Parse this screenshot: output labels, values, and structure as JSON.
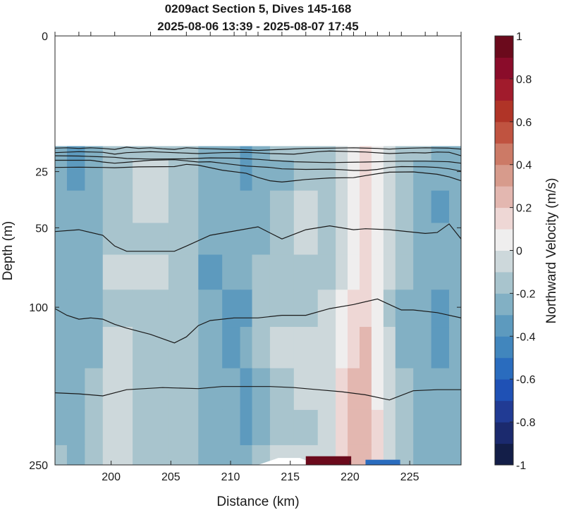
{
  "chart_data": {
    "type": "heatmap",
    "title": "0209act Section 5, Dives 145-168",
    "subtitle": "2025-08-06 13:39 - 2025-08-07 17:45",
    "xlabel": "Distance (km)",
    "ylabel": "Depth (m)",
    "xlim": [
      195.3,
      229.3
    ],
    "ylim": [
      250,
      0
    ],
    "y_scale": "sqrt",
    "x_ticks": [
      200,
      205,
      210,
      215,
      220,
      225
    ],
    "y_ticks": [
      0,
      25,
      50,
      100,
      250
    ],
    "colorbar": {
      "label": "Northward Velocity (m/s)",
      "range": [
        -1,
        1
      ],
      "ticks": [
        -1,
        -0.8,
        -0.6,
        -0.4,
        -0.2,
        0,
        0.2,
        0.4,
        0.6,
        0.8,
        1
      ],
      "colors": [
        "#131e48",
        "#1b2a6e",
        "#213b94",
        "#1f51b5",
        "#2a6cbe",
        "#4186bd",
        "#5d9abe",
        "#82b0c4",
        "#a8c4cd",
        "#cdd8db",
        "#efeeee",
        "#eed7d5",
        "#e3b7b0",
        "#d79b8c",
        "#cc7a66",
        "#c05340",
        "#b03427",
        "#a11b2c",
        "#8a0c2a",
        "#6b0a1c"
      ]
    },
    "data_top_depth": 16.5,
    "x": [
      195.3,
      197.3,
      198.3,
      200.3,
      203.3,
      206.3,
      208.3,
      210.3,
      211.3,
      212.3,
      214.3,
      216.3,
      218.3,
      219.3,
      220.3,
      221.3,
      222.3,
      223.3,
      224.3,
      226.3,
      227.3,
      229.3
    ],
    "depth": [
      17,
      25,
      40,
      55,
      75,
      100,
      130,
      170,
      210,
      245
    ],
    "velocity": [
      [
        -0.22,
        -0.32,
        -0.28,
        -0.15,
        -0.12,
        -0.15,
        -0.3,
        -0.28,
        -0.35,
        -0.26,
        -0.2,
        -0.15,
        -0.2,
        -0.06,
        0.02,
        0.13,
        0.05,
        -0.1,
        -0.15,
        -0.2,
        -0.3,
        -0.25
      ],
      [
        -0.25,
        -0.33,
        -0.3,
        -0.13,
        -0.1,
        -0.14,
        -0.28,
        -0.25,
        -0.32,
        -0.3,
        -0.22,
        -0.12,
        -0.18,
        -0.05,
        0.03,
        0.14,
        0.06,
        -0.1,
        -0.17,
        -0.22,
        -0.3,
        -0.28
      ],
      [
        -0.28,
        -0.3,
        -0.26,
        -0.12,
        -0.1,
        -0.15,
        -0.28,
        -0.28,
        -0.3,
        -0.25,
        -0.18,
        -0.1,
        -0.15,
        -0.06,
        0.02,
        0.15,
        0.05,
        -0.1,
        -0.18,
        -0.25,
        -0.32,
        -0.3
      ],
      [
        -0.28,
        -0.28,
        -0.25,
        -0.12,
        -0.12,
        -0.18,
        -0.3,
        -0.3,
        -0.28,
        -0.22,
        -0.15,
        -0.1,
        -0.14,
        -0.04,
        0.03,
        0.16,
        0.06,
        -0.08,
        -0.2,
        -0.26,
        -0.3,
        -0.28
      ],
      [
        -0.26,
        -0.3,
        -0.26,
        -0.1,
        -0.1,
        -0.2,
        -0.32,
        -0.3,
        -0.3,
        -0.2,
        -0.12,
        -0.12,
        -0.12,
        -0.02,
        0.06,
        0.15,
        0.05,
        -0.1,
        -0.2,
        -0.28,
        -0.3,
        -0.3
      ],
      [
        -0.25,
        -0.3,
        -0.22,
        -0.12,
        -0.12,
        -0.2,
        -0.3,
        -0.35,
        -0.32,
        -0.18,
        -0.12,
        -0.12,
        -0.1,
        0.02,
        0.12,
        0.18,
        0.06,
        -0.12,
        -0.22,
        -0.3,
        -0.34,
        -0.3
      ],
      [
        -0.24,
        -0.28,
        -0.22,
        -0.1,
        -0.12,
        -0.18,
        -0.28,
        -0.33,
        -0.3,
        -0.2,
        -0.1,
        -0.1,
        -0.08,
        0.06,
        0.16,
        0.2,
        0.08,
        -0.1,
        -0.22,
        -0.28,
        -0.32,
        -0.28
      ],
      [
        -0.22,
        -0.26,
        -0.2,
        -0.1,
        -0.12,
        -0.18,
        -0.28,
        -0.3,
        -0.32,
        -0.22,
        -0.12,
        -0.1,
        -0.08,
        0.1,
        0.22,
        0.2,
        0.08,
        -0.08,
        -0.2,
        -0.26,
        -0.3,
        -0.28
      ],
      [
        -0.22,
        -0.26,
        -0.18,
        -0.1,
        -0.12,
        -0.16,
        -0.26,
        -0.28,
        -0.33,
        -0.22,
        -0.12,
        -0.12,
        -0.1,
        0.12,
        0.24,
        0.22,
        0.1,
        -0.08,
        -0.2,
        -0.26,
        -0.28,
        -0.26
      ],
      [
        -0.2,
        -0.24,
        -0.18,
        -0.1,
        -0.12,
        -0.16,
        -0.24,
        -0.26,
        -0.3,
        -0.2,
        -0.1,
        -0.1,
        -0.08,
        0.14,
        0.26,
        0.24,
        0.1,
        -0.06,
        -0.18,
        -0.24,
        -0.26,
        -0.24
      ]
    ],
    "bottom_features": [
      {
        "type": "no-data",
        "x": [
          212.3,
          214.0,
          215.8,
          217.3
        ],
        "depth": [
          250,
          242,
          242,
          250
        ]
      },
      {
        "type": "strong-positive",
        "value": 0.95,
        "x_range": [
          216.3,
          220.1
        ],
        "depth_range": [
          240,
          250
        ]
      },
      {
        "type": "strong-negative",
        "value": -0.55,
        "x_range": [
          221.3,
          224.2
        ],
        "depth_range": [
          244,
          250
        ]
      }
    ],
    "contours": [
      {
        "x": [
          195.3,
          196.3,
          197.3,
          198.3,
          199.3,
          200.3,
          201.3,
          202.3,
          203.3,
          204.3,
          205.3,
          206.3,
          207.3,
          208.3,
          210.3,
          212.3,
          214.3,
          216.3,
          218.3,
          220.3,
          222.3,
          223.3,
          224.3,
          226.3,
          228.3,
          229.3
        ],
        "depth": [
          17.1,
          17,
          17.2,
          17,
          17.2,
          17.5,
          16.8,
          17.2,
          17,
          17.3,
          17.5,
          17,
          17.2,
          17.3,
          17.5,
          17.8,
          17.5,
          17.2,
          17.1,
          17,
          17.2,
          17.4,
          17.2,
          17,
          17.1,
          17.4
        ]
      },
      {
        "x": [
          195.3,
          197.3,
          199.3,
          200.3,
          201.3,
          203.3,
          205.3,
          207.3,
          209.3,
          211.3,
          213.3,
          215.3,
          217.3,
          218.3,
          220.3,
          221.3,
          223.3,
          225.3,
          226.3,
          227.3,
          228.3,
          229.3
        ],
        "depth": [
          18.5,
          18.2,
          18.4,
          19,
          18.5,
          18.2,
          18.5,
          18.8,
          18.5,
          18.4,
          18.8,
          19,
          18.2,
          18,
          18.2,
          18.3,
          18.8,
          18.5,
          18.6,
          18.3,
          18.4,
          19.5
        ]
      },
      {
        "x": [
          195.3,
          197.3,
          200.3,
          201.3,
          203.3,
          206.3,
          208.3,
          210.3,
          212.3,
          213.3,
          215.3,
          218.3,
          221.3,
          224.3,
          226.3,
          228.3,
          229.3
        ],
        "depth": [
          19.5,
          19.6,
          20,
          20.4,
          20.6,
          20.5,
          20.2,
          20.3,
          20.7,
          21,
          21.5,
          21.8,
          21.6,
          21.3,
          21.3,
          21.5,
          22
        ]
      },
      {
        "x": [
          195.3,
          198.3,
          199.3,
          200.3,
          201.3,
          203.3,
          205.3,
          206.3,
          207.3,
          208.3,
          209.3,
          211.3,
          213.3,
          214.3,
          216.3,
          218.3,
          219.3,
          220.3,
          221.3,
          222.3,
          223.3,
          224.3,
          226.3,
          227.3,
          228.3,
          229.3
        ],
        "depth": [
          21,
          21,
          21.6,
          22,
          21.7,
          21,
          20.8,
          21.2,
          21.6,
          21.5,
          22,
          23,
          23.5,
          24,
          24.2,
          24.1,
          24.3,
          24.6,
          24.6,
          24.2,
          23.5,
          23.2,
          23.3,
          23.5,
          24,
          24.8
        ]
      },
      {
        "x": [
          195.3,
          197.3,
          199.3,
          200.3,
          202.3,
          205.3,
          206.3,
          207.3,
          209.3,
          211.3,
          212.3,
          213.3,
          214.3,
          215.3,
          216.3,
          218.3,
          220.3,
          221.3,
          222.3,
          223.3,
          225.3,
          227.3,
          228.3,
          229.3
        ],
        "depth": [
          23.5,
          23.4,
          23.5,
          23.6,
          23.3,
          23.2,
          22.4,
          22.7,
          24.5,
          25.6,
          27.2,
          28.5,
          29,
          28.5,
          28,
          27.4,
          27.3,
          26.5,
          25.8,
          25.2,
          25.1,
          26,
          27,
          28.5
        ]
      },
      {
        "x": [
          195.3,
          197.3,
          199.3,
          200.3,
          201.3,
          205.3,
          206.3,
          208.3,
          212.3,
          214.3,
          216.3,
          218.3,
          220.3,
          221.3,
          223.3,
          226.3,
          227.3,
          228.3,
          229.3
        ],
        "depth": [
          52,
          51,
          54,
          60,
          63,
          63,
          60,
          54,
          49.5,
          56,
          51,
          49,
          51,
          50.5,
          51,
          53,
          52.5,
          48,
          56
        ]
      },
      {
        "x": [
          195.3,
          196.3,
          197.3,
          198.3,
          199.3,
          200.3,
          201.3,
          203.3,
          205.3,
          206.3,
          207.3,
          208.3,
          210.3,
          212.3,
          214.3,
          216.3,
          218.3,
          220.3,
          222.3,
          223.3,
          224.3,
          225.3,
          227.3,
          229.3
        ],
        "depth": [
          101,
          106,
          109,
          108,
          109,
          113,
          116,
          121,
          128,
          123,
          114,
          110,
          108,
          108,
          106,
          106,
          101,
          98,
          94,
          98,
          102,
          102,
          104,
          108
        ]
      },
      {
        "x": [
          195.3,
          197.3,
          199.3,
          201.3,
          204.3,
          207.3,
          209.3,
          211.3,
          213.3,
          215.3,
          217.3,
          219.3,
          221.3,
          223.3,
          225.3,
          227.3,
          229.3
        ],
        "depth": [
          173,
          174,
          176,
          170,
          168,
          169,
          167,
          167,
          167,
          168,
          170,
          172,
          175,
          180,
          171,
          170,
          170
        ]
      }
    ]
  }
}
